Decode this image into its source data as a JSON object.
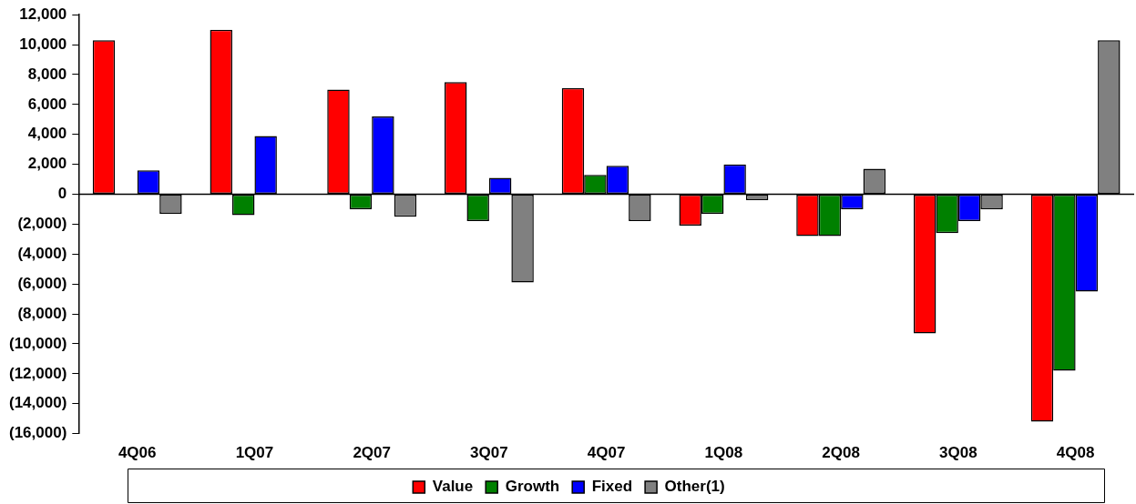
{
  "chart_data": {
    "type": "bar",
    "categories": [
      "4Q06",
      "1Q07",
      "2Q07",
      "3Q07",
      "4Q07",
      "1Q08",
      "2Q08",
      "3Q08",
      "4Q08"
    ],
    "series": [
      {
        "name": "Value",
        "color": "#ff0000",
        "values": [
          10300,
          11000,
          7000,
          7500,
          7100,
          -2100,
          -2800,
          -9300,
          -15200
        ]
      },
      {
        "name": "Growth",
        "color": "#008000",
        "values": [
          0,
          -1400,
          -1000,
          -1800,
          1300,
          -1300,
          -2800,
          -2600,
          -11800
        ]
      },
      {
        "name": "Fixed",
        "color": "#0000ff",
        "values": [
          1600,
          3900,
          5200,
          1100,
          1900,
          2000,
          -1000,
          -1800,
          -6500
        ]
      },
      {
        "name": "Other(1)",
        "color": "#808080",
        "values": [
          -1300,
          0,
          -1500,
          -5900,
          -1800,
          -400,
          1700,
          -1000,
          10300
        ]
      }
    ],
    "ylim": [
      -16000,
      12000
    ],
    "yticks": [
      {
        "value": -16000,
        "label": "(16,000)"
      },
      {
        "value": -14000,
        "label": "(14,000)"
      },
      {
        "value": -12000,
        "label": "(12,000)"
      },
      {
        "value": -10000,
        "label": "(10,000)"
      },
      {
        "value": -8000,
        "label": "(8,000)"
      },
      {
        "value": -6000,
        "label": "(6,000)"
      },
      {
        "value": -4000,
        "label": "(4,000)"
      },
      {
        "value": -2000,
        "label": "(2,000)"
      },
      0,
      {
        "value": 2000,
        "label": "2,000"
      },
      {
        "value": 4000,
        "label": "4,000"
      },
      {
        "value": 6000,
        "label": "6,000"
      },
      {
        "value": 8000,
        "label": "8,000"
      },
      {
        "value": 10000,
        "label": "10,000"
      },
      {
        "value": 12000,
        "label": "12,000"
      }
    ],
    "ref_lines": [
      {
        "axis": "y",
        "value": 0,
        "color": "#000000"
      }
    ],
    "grid": false,
    "legend": "bottom"
  }
}
